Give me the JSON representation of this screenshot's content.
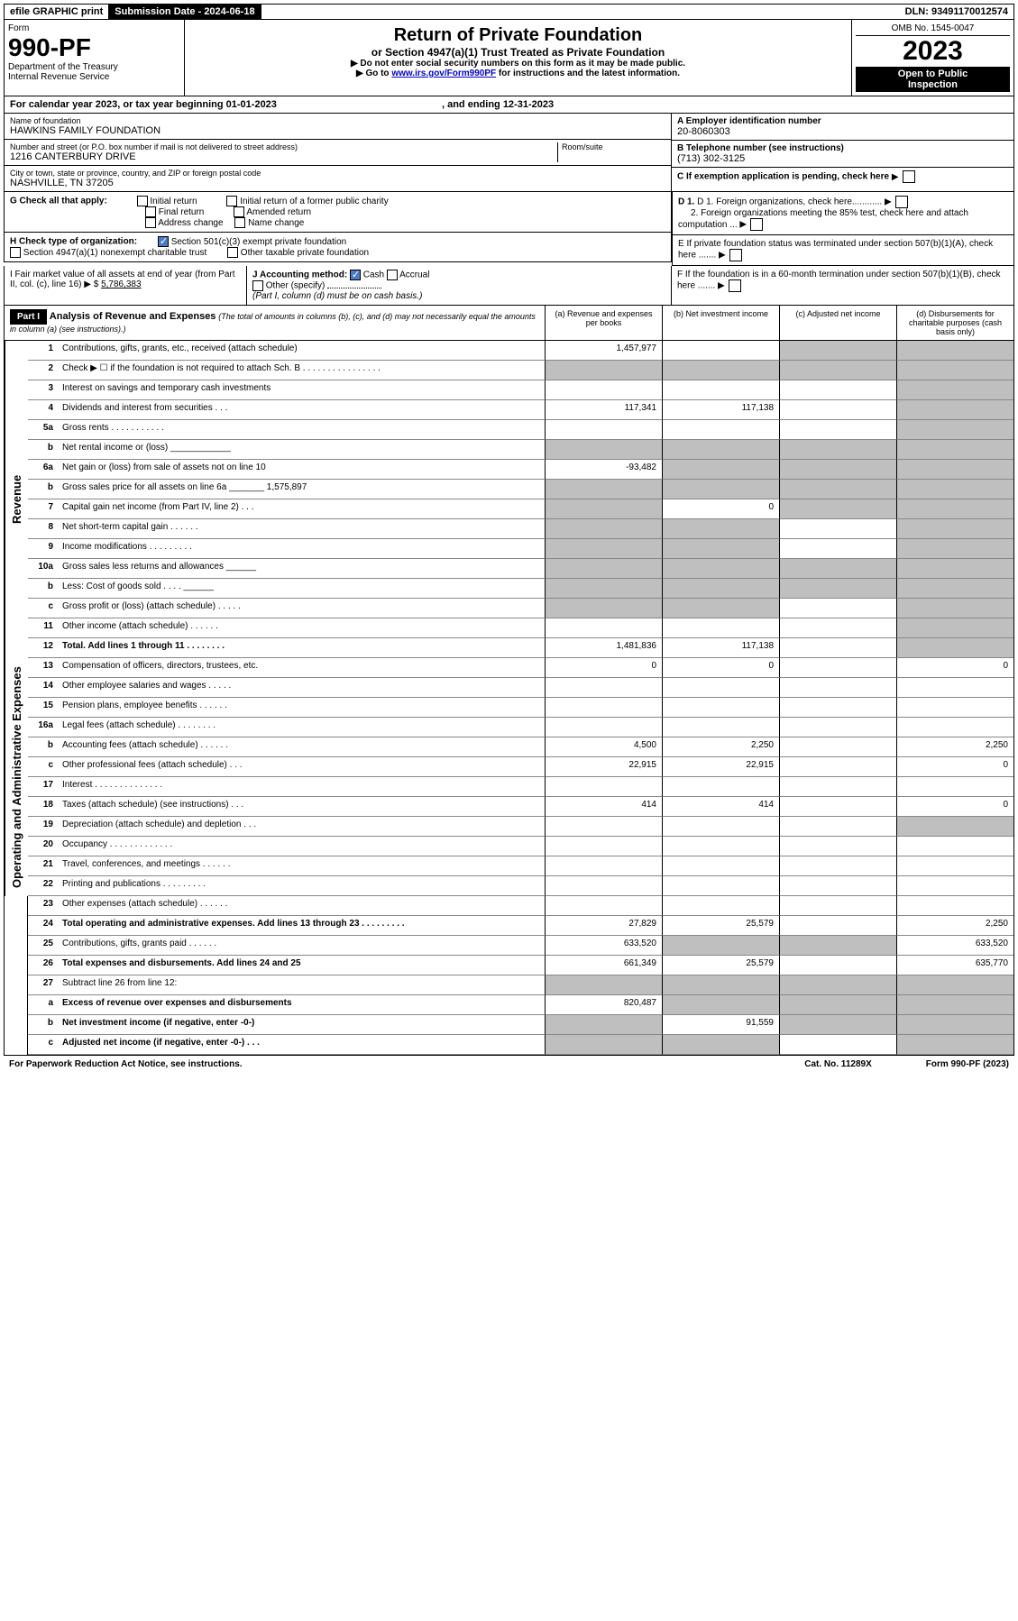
{
  "topbar": {
    "efile": "efile GRAPHIC print",
    "submission_label": "Submission Date - 2024-06-18",
    "dln": "DLN: 93491170012574"
  },
  "header": {
    "form_label": "Form",
    "form_number": "990-PF",
    "dept1": "Department of the Treasury",
    "dept2": "Internal Revenue Service",
    "title": "Return of Private Foundation",
    "subtitle": "or Section 4947(a)(1) Trust Treated as Private Foundation",
    "note1": "▶ Do not enter social security numbers on this form as it may be made public.",
    "note2_pre": "▶ Go to ",
    "note2_link": "www.irs.gov/Form990PF",
    "note2_post": " for instructions and the latest information.",
    "omb": "OMB No. 1545-0047",
    "year": "2023",
    "inspect1": "Open to Public",
    "inspect2": "Inspection"
  },
  "calendar": {
    "text_pre": "For calendar year 2023, or tax year beginning 01-01-2023",
    "text_mid": ", and ending 12-31-2023"
  },
  "foundation": {
    "name_label": "Name of foundation",
    "name": "HAWKINS FAMILY FOUNDATION",
    "addr_label": "Number and street (or P.O. box number if mail is not delivered to street address)",
    "addr": "1216 CANTERBURY DRIVE",
    "room_label": "Room/suite",
    "city_label": "City or town, state or province, country, and ZIP or foreign postal code",
    "city": "NASHVILLE, TN  37205",
    "ein_label": "A Employer identification number",
    "ein": "20-8060303",
    "phone_label": "B Telephone number (see instructions)",
    "phone": "(713) 302-3125",
    "c_label": "C If exemption application is pending, check here",
    "d1": "D 1. Foreign organizations, check here............",
    "d2": "2. Foreign organizations meeting the 85% test, check here and attach computation ...",
    "e_label": "E  If private foundation status was terminated under section 507(b)(1)(A), check here .......",
    "f_label": "F  If the foundation is in a 60-month termination under section 507(b)(1)(B), check here .......",
    "g_label": "G Check all that apply:",
    "g_opts": [
      "Initial return",
      "Initial return of a former public charity",
      "Final return",
      "Amended return",
      "Address change",
      "Name change"
    ],
    "h_label": "H Check type of organization:",
    "h_opt1": "Section 501(c)(3) exempt private foundation",
    "h_opt2": "Section 4947(a)(1) nonexempt charitable trust",
    "h_opt3": "Other taxable private foundation",
    "i_label": "I Fair market value of all assets at end of year (from Part II, col. (c), line 16) ▶ $",
    "i_val": "5,786,383",
    "j_label": "J Accounting method:",
    "j_cash": "Cash",
    "j_accrual": "Accrual",
    "j_other": "Other (specify)",
    "j_note": "(Part I, column (d) must be on cash basis.)"
  },
  "part1": {
    "label": "Part I",
    "title": "Analysis of Revenue and Expenses",
    "title_note": "(The total of amounts in columns (b), (c), and (d) may not necessarily equal the amounts in column (a) (see instructions).)",
    "col_a": "(a)   Revenue and expenses per books",
    "col_b": "(b)   Net investment income",
    "col_c": "(c)   Adjusted net income",
    "col_d": "(d)   Disbursements for charitable purposes (cash basis only)"
  },
  "sections": {
    "revenue": "Revenue",
    "expenses": "Operating and Administrative Expenses"
  },
  "rows": [
    {
      "n": "1",
      "d": "Contributions, gifts, grants, etc., received (attach schedule)",
      "a": "1,457,977",
      "b": "",
      "c": "g",
      "dd": "g"
    },
    {
      "n": "2",
      "d": "Check ▶ ☐ if the foundation is not required to attach Sch. B   .  .  .  .  .  .  .  .  .  .  .  .  .  .  .  .",
      "a": "g",
      "b": "g",
      "c": "g",
      "dd": "g"
    },
    {
      "n": "3",
      "d": "Interest on savings and temporary cash investments",
      "a": "",
      "b": "",
      "c": "",
      "dd": "g"
    },
    {
      "n": "4",
      "d": "Dividends and interest from securities   .   .   .",
      "a": "117,341",
      "b": "117,138",
      "c": "",
      "dd": "g"
    },
    {
      "n": "5a",
      "d": "Gross rents   .   .   .   .   .   .   .   .   .   .   .",
      "a": "",
      "b": "",
      "c": "",
      "dd": "g"
    },
    {
      "n": "b",
      "d": "Net rental income or (loss)  ____________",
      "a": "g",
      "b": "g",
      "c": "g",
      "dd": "g"
    },
    {
      "n": "6a",
      "d": "Net gain or (loss) from sale of assets not on line 10",
      "a": "-93,482",
      "b": "g",
      "c": "g",
      "dd": "g"
    },
    {
      "n": "b",
      "d": "Gross sales price for all assets on line 6a _______ 1,575,897",
      "a": "g",
      "b": "g",
      "c": "g",
      "dd": "g"
    },
    {
      "n": "7",
      "d": "Capital gain net income (from Part IV, line 2)   .   .   .",
      "a": "g",
      "b": "0",
      "c": "g",
      "dd": "g"
    },
    {
      "n": "8",
      "d": "Net short-term capital gain   .   .   .   .   .   .",
      "a": "g",
      "b": "g",
      "c": "",
      "dd": "g"
    },
    {
      "n": "9",
      "d": "Income modifications  .   .   .   .   .   .   .   .   .",
      "a": "g",
      "b": "g",
      "c": "",
      "dd": "g"
    },
    {
      "n": "10a",
      "d": "Gross sales less returns and allowances  ______",
      "a": "g",
      "b": "g",
      "c": "g",
      "dd": "g"
    },
    {
      "n": "b",
      "d": "Less: Cost of goods sold   .   .   .   .   ______",
      "a": "g",
      "b": "g",
      "c": "g",
      "dd": "g"
    },
    {
      "n": "c",
      "d": "Gross profit or (loss) (attach schedule)   .   .   .   .   .",
      "a": "g",
      "b": "g",
      "c": "",
      "dd": "g"
    },
    {
      "n": "11",
      "d": "Other income (attach schedule)   .   .   .   .   .   .",
      "a": "",
      "b": "",
      "c": "",
      "dd": "g"
    },
    {
      "n": "12",
      "d": "Total. Add lines 1 through 11   .   .   .   .   .   .   .   .",
      "a": "1,481,836",
      "b": "117,138",
      "c": "",
      "dd": "g",
      "bold": true
    },
    {
      "n": "13",
      "d": "Compensation of officers, directors, trustees, etc.",
      "a": "0",
      "b": "0",
      "c": "",
      "dd": "0"
    },
    {
      "n": "14",
      "d": "Other employee salaries and wages   .   .   .   .   .",
      "a": "",
      "b": "",
      "c": "",
      "dd": ""
    },
    {
      "n": "15",
      "d": "Pension plans, employee benefits   .   .   .   .   .   .",
      "a": "",
      "b": "",
      "c": "",
      "dd": ""
    },
    {
      "n": "16a",
      "d": "Legal fees (attach schedule)  .   .   .   .   .   .   .   .",
      "a": "",
      "b": "",
      "c": "",
      "dd": ""
    },
    {
      "n": "b",
      "d": "Accounting fees (attach schedule)  .   .   .   .   .   .",
      "a": "4,500",
      "b": "2,250",
      "c": "",
      "dd": "2,250"
    },
    {
      "n": "c",
      "d": "Other professional fees (attach schedule)   .   .   .",
      "a": "22,915",
      "b": "22,915",
      "c": "",
      "dd": "0"
    },
    {
      "n": "17",
      "d": "Interest  .   .   .   .   .   .   .   .   .   .   .   .   .   .",
      "a": "",
      "b": "",
      "c": "",
      "dd": ""
    },
    {
      "n": "18",
      "d": "Taxes (attach schedule) (see instructions)   .   .   .",
      "a": "414",
      "b": "414",
      "c": "",
      "dd": "0"
    },
    {
      "n": "19",
      "d": "Depreciation (attach schedule) and depletion   .   .   .",
      "a": "",
      "b": "",
      "c": "",
      "dd": "g"
    },
    {
      "n": "20",
      "d": "Occupancy  .   .   .   .   .   .   .   .   .   .   .   .   .",
      "a": "",
      "b": "",
      "c": "",
      "dd": ""
    },
    {
      "n": "21",
      "d": "Travel, conferences, and meetings  .   .   .   .   .   .",
      "a": "",
      "b": "",
      "c": "",
      "dd": ""
    },
    {
      "n": "22",
      "d": "Printing and publications  .   .   .   .   .   .   .   .   .",
      "a": "",
      "b": "",
      "c": "",
      "dd": ""
    },
    {
      "n": "23",
      "d": "Other expenses (attach schedule)  .   .   .   .   .   .",
      "a": "",
      "b": "",
      "c": "",
      "dd": ""
    },
    {
      "n": "24",
      "d": "Total operating and administrative expenses. Add lines 13 through 23   .   .   .   .   .   .   .   .   .",
      "a": "27,829",
      "b": "25,579",
      "c": "",
      "dd": "2,250",
      "bold": true
    },
    {
      "n": "25",
      "d": "Contributions, gifts, grants paid   .   .   .   .   .   .",
      "a": "633,520",
      "b": "g",
      "c": "g",
      "dd": "633,520"
    },
    {
      "n": "26",
      "d": "Total expenses and disbursements. Add lines 24 and 25",
      "a": "661,349",
      "b": "25,579",
      "c": "",
      "dd": "635,770",
      "bold": true
    },
    {
      "n": "27",
      "d": "Subtract line 26 from line 12:",
      "a": "g",
      "b": "g",
      "c": "g",
      "dd": "g"
    },
    {
      "n": "a",
      "d": "Excess of revenue over expenses and disbursements",
      "a": "820,487",
      "b": "g",
      "c": "g",
      "dd": "g",
      "bold": true
    },
    {
      "n": "b",
      "d": "Net investment income (if negative, enter -0-)",
      "a": "g",
      "b": "91,559",
      "c": "g",
      "dd": "g",
      "bold": true
    },
    {
      "n": "c",
      "d": "Adjusted net income (if negative, enter -0-)   .   .   .",
      "a": "g",
      "b": "g",
      "c": "",
      "dd": "g",
      "bold": true
    }
  ],
  "footer": {
    "left": "For Paperwork Reduction Act Notice, see instructions.",
    "mid": "Cat. No. 11289X",
    "right": "Form 990-PF (2023)"
  }
}
